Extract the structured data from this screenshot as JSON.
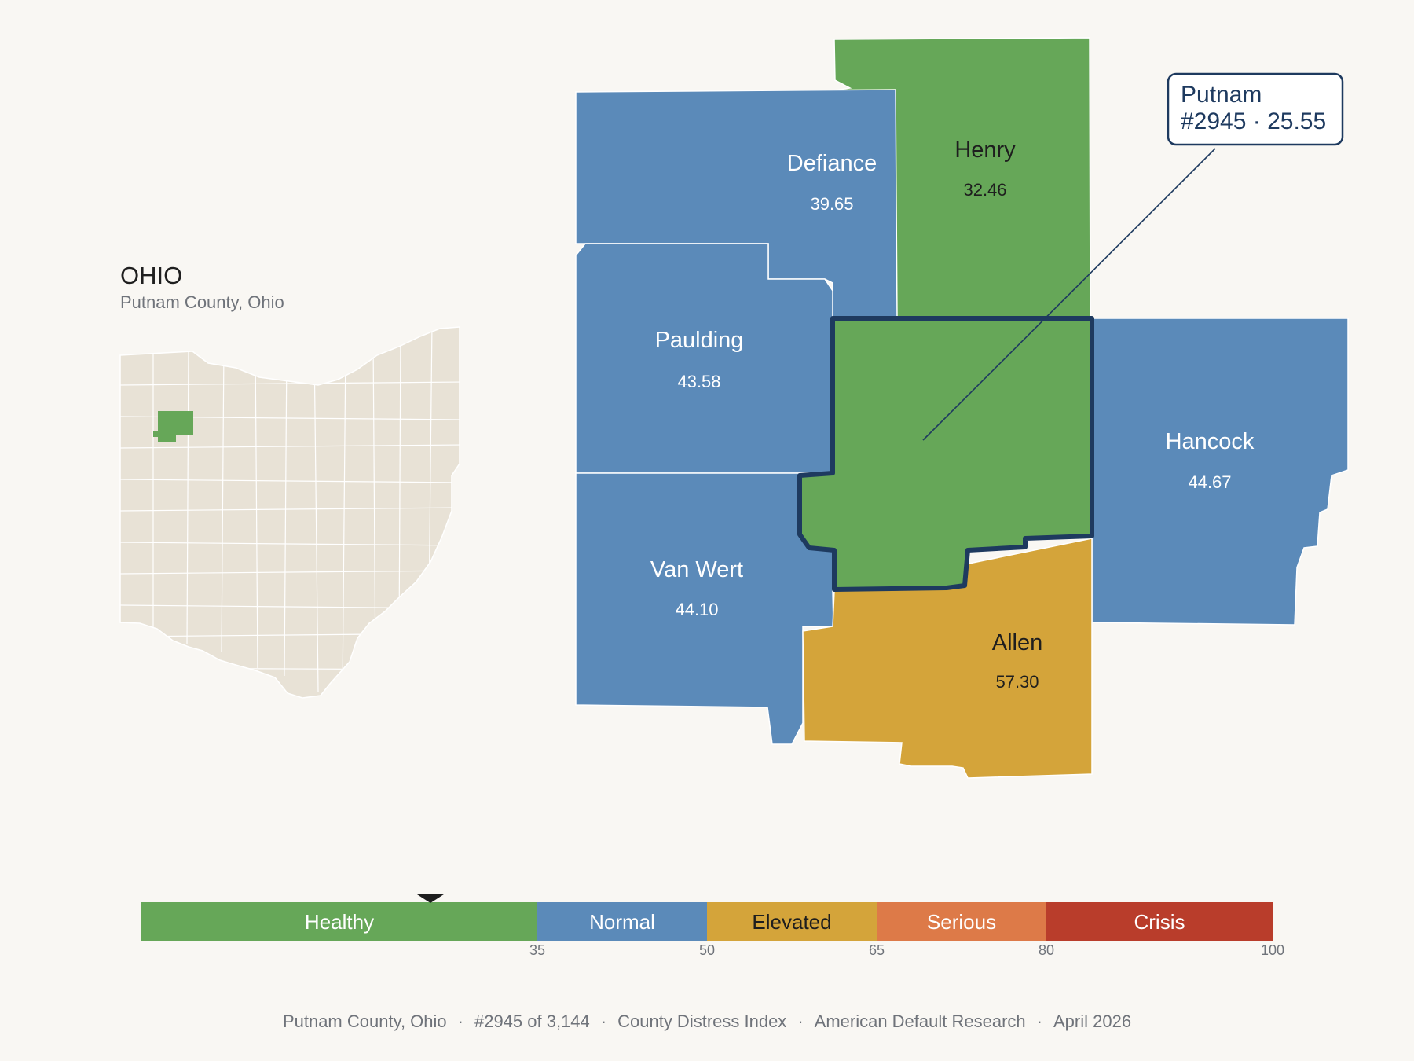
{
  "inset": {
    "state": "OHIO",
    "subtitle": "Putnam County, Ohio"
  },
  "counties": {
    "defiance": {
      "name": "Defiance",
      "value": "39.65",
      "category": "Normal"
    },
    "henry": {
      "name": "Henry",
      "value": "32.46",
      "category": "Healthy"
    },
    "paulding": {
      "name": "Paulding",
      "value": "43.58",
      "category": "Normal"
    },
    "van_wert": {
      "name": "Van Wert",
      "value": "44.10",
      "category": "Normal"
    },
    "hancock": {
      "name": "Hancock",
      "value": "44.67",
      "category": "Normal"
    },
    "allen": {
      "name": "Allen",
      "value": "57.30",
      "category": "Elevated"
    },
    "putnam": {
      "name": "Putnam",
      "value": "25.55",
      "category": "Healthy",
      "highlighted": true
    }
  },
  "callout": {
    "line1": "Putnam",
    "line2": "#2945 · 25.55"
  },
  "scale": {
    "min": 0,
    "max": 100,
    "marker_value": 25.55,
    "segments": [
      {
        "label": "Healthy",
        "from": 0,
        "to": 35,
        "color": "#66a758"
      },
      {
        "label": "Normal",
        "from": 35,
        "to": 50,
        "color": "#5b8ab9"
      },
      {
        "label": "Elevated",
        "from": 50,
        "to": 65,
        "color": "#d4a43a"
      },
      {
        "label": "Serious",
        "from": 65,
        "to": 80,
        "color": "#dd7a48"
      },
      {
        "label": "Crisis",
        "from": 80,
        "to": 100,
        "color": "#b93d2b"
      }
    ],
    "ticks": [
      "35",
      "50",
      "65",
      "80",
      "100"
    ]
  },
  "colors": {
    "background": "#f9f7f3",
    "inset_fill": "#e8e2d6",
    "highlight_outline": "#1e3a5f"
  },
  "footer": {
    "county": "Putnam County, Ohio",
    "rank": "#2945 of 3,144",
    "index": "County Distress Index",
    "source": "American Default Research",
    "date": "April 2026"
  }
}
